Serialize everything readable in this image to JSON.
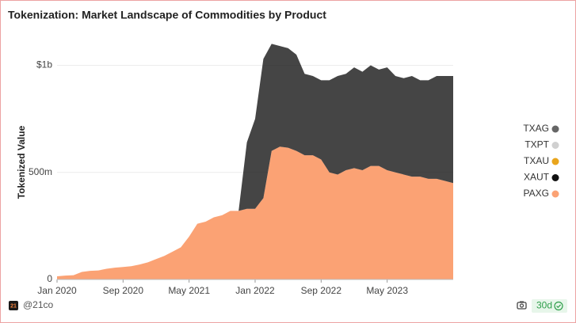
{
  "chart_data": {
    "type": "stacked_area",
    "title": "Tokenization: Market Landscape of Commodities by Product",
    "ylabel": "Tokenized Value",
    "x": [
      "2020-01",
      "2020-02",
      "2020-03",
      "2020-04",
      "2020-05",
      "2020-06",
      "2020-07",
      "2020-08",
      "2020-09",
      "2020-10",
      "2020-11",
      "2020-12",
      "2021-01",
      "2021-02",
      "2021-03",
      "2021-04",
      "2021-05",
      "2021-06",
      "2021-07",
      "2021-08",
      "2021-09",
      "2021-10",
      "2021-11",
      "2021-12",
      "2022-01",
      "2022-02",
      "2022-03",
      "2022-04",
      "2022-05",
      "2022-06",
      "2022-07",
      "2022-08",
      "2022-09",
      "2022-10",
      "2022-11",
      "2022-12",
      "2023-01",
      "2023-02",
      "2023-03",
      "2023-04",
      "2023-05",
      "2023-06",
      "2023-07",
      "2023-08",
      "2023-09",
      "2023-10",
      "2023-11",
      "2023-12",
      "2024-01"
    ],
    "series": [
      {
        "name": "PAXG",
        "color": "#fba274",
        "values": [
          15000000,
          18000000,
          20000000,
          35000000,
          40000000,
          42000000,
          50000000,
          55000000,
          58000000,
          62000000,
          70000000,
          80000000,
          95000000,
          110000000,
          130000000,
          150000000,
          200000000,
          260000000,
          270000000,
          290000000,
          300000000,
          320000000,
          320000000,
          330000000,
          330000000,
          380000000,
          600000000,
          620000000,
          615000000,
          600000000,
          580000000,
          580000000,
          560000000,
          500000000,
          490000000,
          510000000,
          520000000,
          510000000,
          530000000,
          530000000,
          510000000,
          500000000,
          490000000,
          480000000,
          480000000,
          470000000,
          470000000,
          460000000,
          450000000
        ]
      },
      {
        "name": "XAUT",
        "color": "#111111",
        "values": [
          0,
          0,
          0,
          0,
          0,
          0,
          0,
          0,
          0,
          0,
          0,
          0,
          0,
          0,
          0,
          0,
          0,
          0,
          0,
          0,
          0,
          0,
          0,
          310000000,
          420000000,
          650000000,
          500000000,
          470000000,
          465000000,
          450000000,
          380000000,
          370000000,
          370000000,
          430000000,
          460000000,
          450000000,
          470000000,
          460000000,
          470000000,
          450000000,
          480000000,
          450000000,
          450000000,
          470000000,
          450000000,
          460000000,
          480000000,
          490000000,
          500000000
        ]
      },
      {
        "name": "TXAU",
        "color": "#e9a51c",
        "values": [
          0,
          0,
          0,
          0,
          0,
          0,
          0,
          0,
          0,
          0,
          0,
          0,
          0,
          0,
          0,
          0,
          0,
          0,
          0,
          0,
          0,
          0,
          0,
          0,
          0,
          0,
          0,
          0,
          0,
          0,
          0,
          0,
          0,
          0,
          0,
          0,
          0,
          0,
          0,
          0,
          0,
          0,
          0,
          0,
          0,
          0,
          0,
          0,
          0
        ]
      },
      {
        "name": "TXPT",
        "color": "#d0d0d0",
        "values": [
          0,
          0,
          0,
          0,
          0,
          0,
          0,
          0,
          0,
          0,
          0,
          0,
          0,
          0,
          0,
          0,
          0,
          0,
          0,
          0,
          0,
          0,
          0,
          0,
          0,
          0,
          0,
          0,
          0,
          0,
          0,
          0,
          0,
          0,
          0,
          0,
          0,
          0,
          0,
          0,
          0,
          0,
          0,
          0,
          0,
          0,
          0,
          0,
          0
        ]
      },
      {
        "name": "TXAG",
        "color": "#666666",
        "values": [
          0,
          0,
          0,
          0,
          0,
          0,
          0,
          0,
          0,
          0,
          0,
          0,
          0,
          0,
          0,
          0,
          0,
          0,
          0,
          0,
          0,
          0,
          0,
          0,
          0,
          0,
          0,
          0,
          0,
          0,
          0,
          0,
          0,
          0,
          0,
          0,
          0,
          0,
          0,
          0,
          0,
          0,
          0,
          0,
          0,
          0,
          0,
          0,
          0
        ]
      }
    ],
    "xlim": [
      "2020-01",
      "2024-01"
    ],
    "xticks": [
      {
        "value": "2020-01",
        "label": "Jan 2020"
      },
      {
        "value": "2020-09",
        "label": "Sep 2020"
      },
      {
        "value": "2021-05",
        "label": "May 2021"
      },
      {
        "value": "2022-01",
        "label": "Jan 2022"
      },
      {
        "value": "2022-09",
        "label": "Sep 2022"
      },
      {
        "value": "2023-05",
        "label": "May 2023"
      }
    ],
    "ylim": [
      0,
      1120000000
    ],
    "yticks": [
      0,
      {
        "value": 500000000,
        "label": "500m"
      },
      {
        "value": 1000000000,
        "label": "$1b"
      }
    ],
    "grid": true,
    "legend": "right",
    "logo": "21",
    "source": "@21co",
    "period": "30d"
  }
}
